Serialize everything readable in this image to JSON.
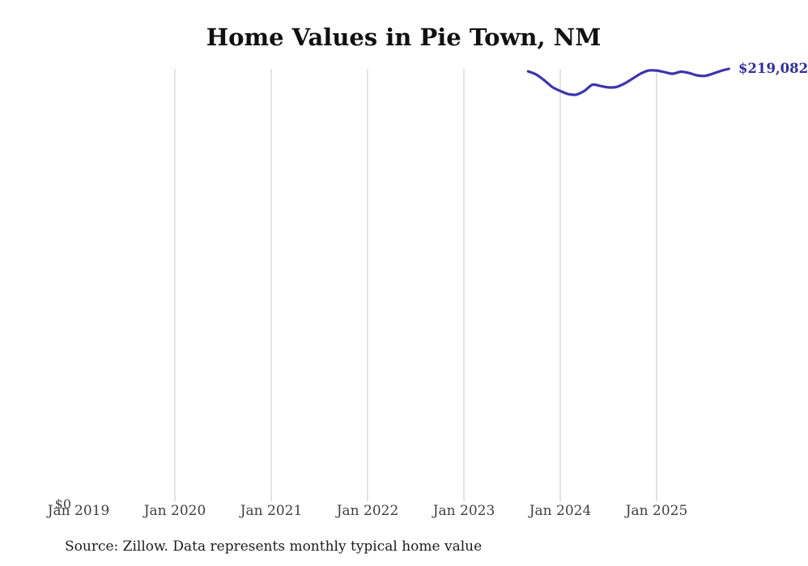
{
  "title": "Home Values in Pie Town, NM",
  "source_note": "Source: Zillow. Data represents monthly typical home value",
  "latest_value_label": "$219,082",
  "y_axis": {
    "zero_label": "$0"
  },
  "colors": {
    "line": "#3b36aa",
    "latest_label": "#32309b",
    "gridline": "#d0d0d0",
    "title_text": "#111111",
    "axis_text": "#3f3f3f",
    "source_text": "#1c1c1c",
    "background": "#ffffff"
  },
  "chart_data": {
    "type": "line",
    "title": "Home Values in Pie Town, NM",
    "xlabel": "",
    "ylabel": "",
    "ylim": [
      0,
      219082
    ],
    "grid": "vertical-years-only",
    "legend": "none",
    "end_point_label": "$219,082",
    "x_ticks": [
      {
        "label": "Jan 2019",
        "gridline": false
      },
      {
        "label": "Jan 2020",
        "gridline": true
      },
      {
        "label": "Jan 2021",
        "gridline": true
      },
      {
        "label": "Jan 2022",
        "gridline": true
      },
      {
        "label": "Jan 2023",
        "gridline": true
      },
      {
        "label": "Jan 2024",
        "gridline": true
      },
      {
        "label": "Jan 2025",
        "gridline": true
      }
    ],
    "x": [
      "2023-09",
      "2023-10",
      "2023-11",
      "2023-12",
      "2024-01",
      "2024-02",
      "2024-03",
      "2024-04",
      "2024-05",
      "2024-06",
      "2024-07",
      "2024-08",
      "2024-09",
      "2024-10",
      "2024-11",
      "2024-12",
      "2025-01",
      "2025-02",
      "2025-03",
      "2025-04",
      "2025-05",
      "2025-06",
      "2025-07",
      "2025-08",
      "2025-09",
      "2025-10"
    ],
    "values": [
      217800,
      216200,
      213300,
      209900,
      207900,
      206300,
      206000,
      207900,
      211000,
      210400,
      209700,
      209900,
      211600,
      214100,
      216600,
      218200,
      218200,
      217400,
      216600,
      217600,
      217000,
      215800,
      215500,
      216600,
      218000,
      219082
    ]
  }
}
